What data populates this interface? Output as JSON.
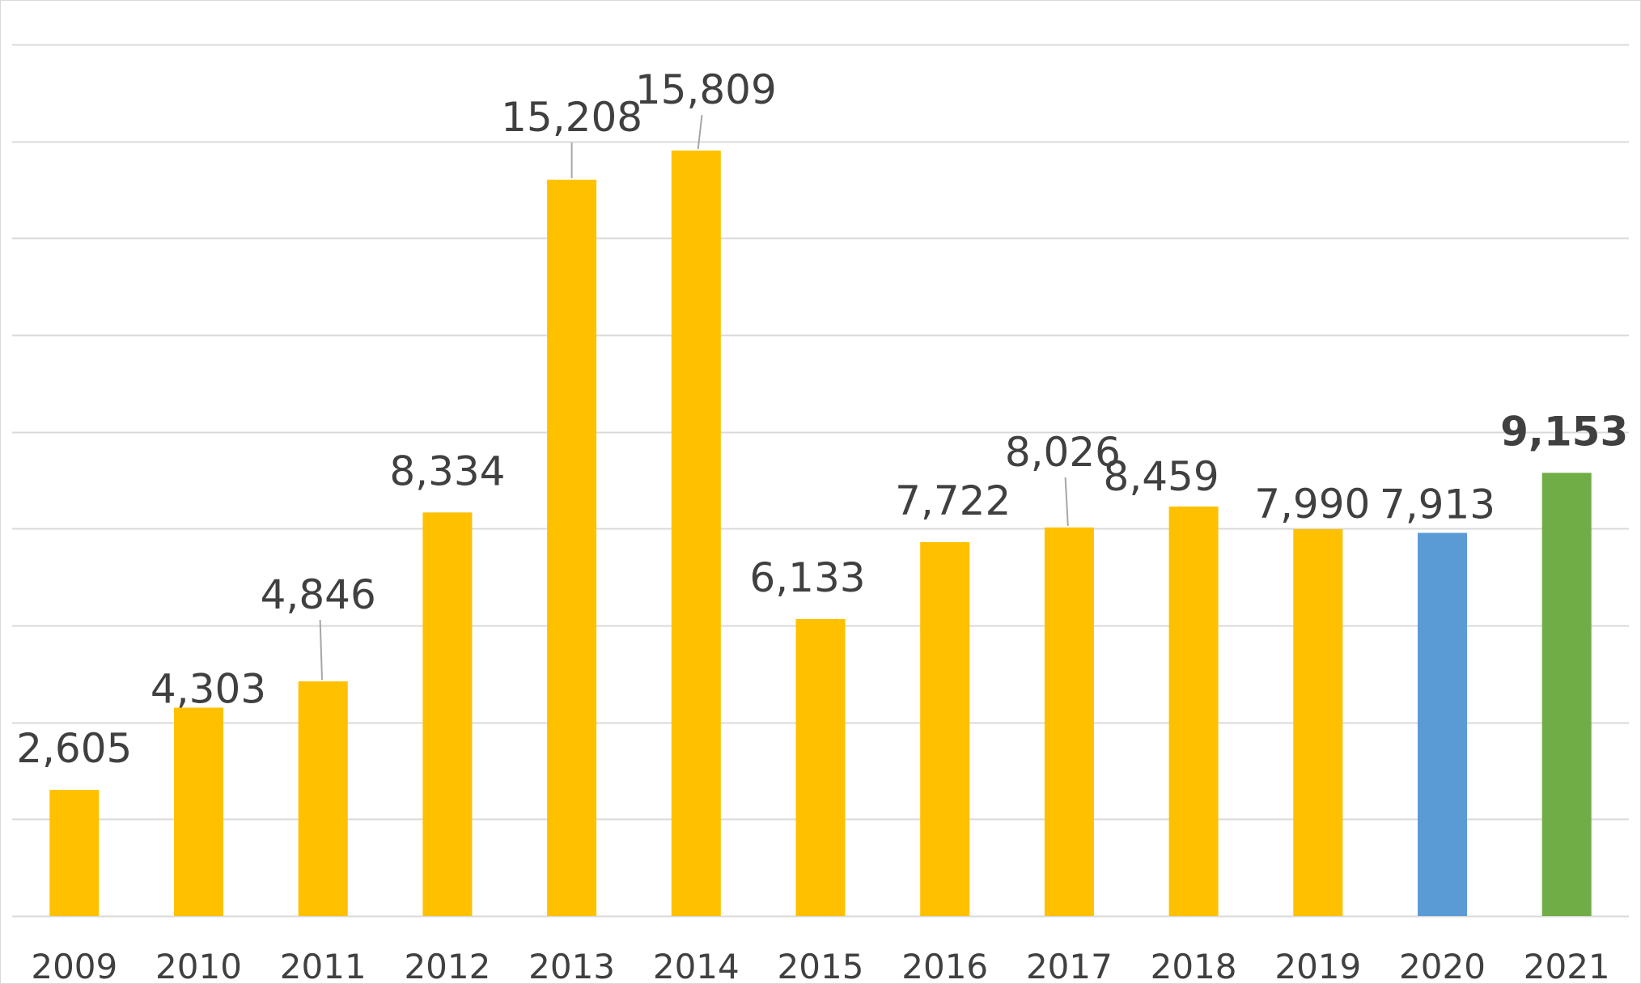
{
  "chart_data": {
    "type": "bar",
    "categories": [
      "2009",
      "2010",
      "2011",
      "2012",
      "2013",
      "2014",
      "2015",
      "2016",
      "2017",
      "2018",
      "2019",
      "2020",
      "2021"
    ],
    "values": [
      2605,
      4303,
      4846,
      8334,
      15208,
      15809,
      6133,
      7722,
      8026,
      8459,
      7990,
      7913,
      9153
    ],
    "data_labels": [
      "2,605",
      "4,303",
      "4,846",
      "8,334",
      "15,208",
      "15,809",
      "6,133",
      "7,722",
      "8,026",
      "8,459",
      "7,990",
      "7,913",
      "9,153"
    ],
    "bar_colors": [
      "#FFC000",
      "#FFC000",
      "#FFC000",
      "#FFC000",
      "#FFC000",
      "#FFC000",
      "#FFC000",
      "#FFC000",
      "#FFC000",
      "#FFC000",
      "#FFC000",
      "#5B9BD5",
      "#70AD47"
    ],
    "bold_labels": [
      "2021"
    ],
    "leader_lines": [
      "2011",
      "2013",
      "2014",
      "2017"
    ],
    "ylim": [
      0,
      18000
    ],
    "gridlines": [
      0,
      2000,
      4000,
      6000,
      8000,
      10000,
      12000,
      14000,
      16000,
      18000
    ],
    "grid": true,
    "legend": "none",
    "title": "",
    "xlabel": "",
    "ylabel": "",
    "colors": {
      "gridline": "#d9d9d9",
      "text": "#404040",
      "leader": "#a6a6a6"
    }
  }
}
